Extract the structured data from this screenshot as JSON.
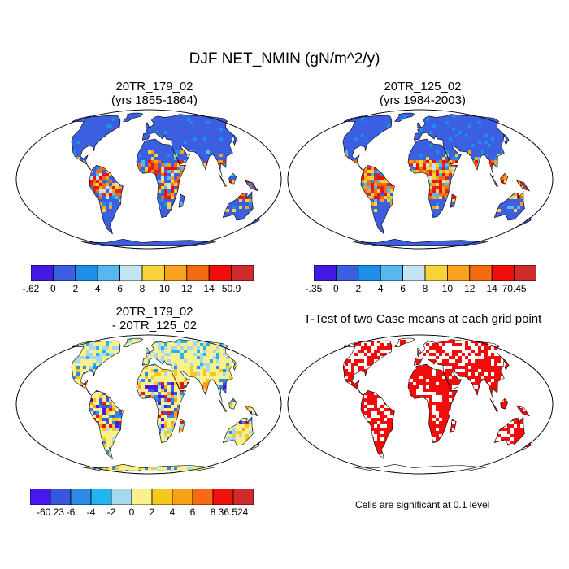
{
  "figure": {
    "title": "DJF NET_NMIN (gN/m^2/y)"
  },
  "panels": [
    {
      "id": "p1",
      "title_line1": "20TR_179_02",
      "title_line2": "(yrs 1855-1864)"
    },
    {
      "id": "p2",
      "title_line1": "20TR_125_02",
      "title_line2": "(yrs 1984-2003)"
    },
    {
      "id": "p3",
      "title_line1": "20TR_179_02",
      "title_line2": "- 20TR_125_02"
    },
    {
      "id": "p4",
      "title_line1": "T-Test of two Case means at each grid point",
      "title_line2": ""
    }
  ],
  "colorbars": {
    "cb1": {
      "colors": [
        "#4419e6",
        "#3b5fe0",
        "#1e8fe8",
        "#56b8ee",
        "#c4e3f3",
        "#f7d23a",
        "#f8a21d",
        "#f56b12",
        "#f20c0c",
        "#cf2b2b"
      ],
      "labels": [
        "-.62",
        "0",
        "2",
        "4",
        "6",
        "8",
        "10",
        "12",
        "14",
        "50.9"
      ]
    },
    "cb2": {
      "colors": [
        "#4419e6",
        "#3b5fe0",
        "#1e8fe8",
        "#56b8ee",
        "#c4e3f3",
        "#f7d23a",
        "#f8a21d",
        "#f56b12",
        "#f20c0c",
        "#cf2b2b"
      ],
      "labels": [
        "-.35",
        "0",
        "2",
        "4",
        "6",
        "8",
        "10",
        "12",
        "14",
        "70.45"
      ]
    },
    "cb3": {
      "colors": [
        "#4a16f0",
        "#3a56dd",
        "#2b8be6",
        "#1fb5f0",
        "#a8d8ee",
        "#fbf08c",
        "#f6c71d",
        "#f7a119",
        "#f56a12",
        "#f2120c",
        "#cf2b2b"
      ],
      "labels": [
        "-60.23",
        "-6",
        "-4",
        "-2",
        "0",
        "2",
        "4",
        "6",
        "8",
        "36.524"
      ]
    }
  },
  "note": "Cells are significant at 0.1 level",
  "colors": {
    "ocean": "#ffffff",
    "land_blue": "#3b5fe0",
    "land_red": "#f20c0c",
    "diff_yellow": "#fbf08c",
    "diff_lightblue": "#a8d8ee"
  }
}
